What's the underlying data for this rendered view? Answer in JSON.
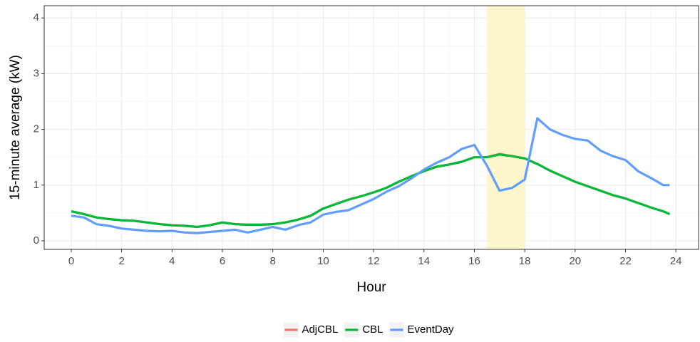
{
  "chart_data": {
    "type": "line",
    "x_label": "Hour",
    "y_label": "15-minute average (kW)",
    "x": [
      0,
      0.5,
      1,
      1.5,
      2,
      2.5,
      3,
      3.5,
      4,
      4.5,
      5,
      5.5,
      6,
      6.5,
      7,
      7.5,
      8,
      8.5,
      9,
      9.5,
      10,
      10.5,
      11,
      11.5,
      12,
      12.5,
      13,
      13.5,
      14,
      14.5,
      15,
      15.5,
      16,
      16.5,
      17,
      17.5,
      18,
      18.5,
      19,
      19.5,
      20,
      20.5,
      21,
      21.5,
      22,
      22.5,
      23,
      23.5,
      23.75
    ],
    "series": [
      {
        "name": "AdjCBL",
        "color": "#f8766d",
        "values": [
          0.53,
          0.48,
          0.42,
          0.39,
          0.37,
          0.36,
          0.33,
          0.3,
          0.28,
          0.27,
          0.25,
          0.28,
          0.33,
          0.3,
          0.29,
          0.29,
          0.3,
          0.33,
          0.38,
          0.45,
          0.58,
          0.66,
          0.74,
          0.8,
          0.87,
          0.95,
          1.06,
          1.16,
          1.25,
          1.33,
          1.37,
          1.42,
          1.5,
          1.5,
          1.56,
          1.52,
          1.48,
          1.38,
          1.26,
          1.16,
          1.06,
          0.98,
          0.9,
          0.82,
          0.76,
          0.68,
          0.6,
          0.53,
          0.48
        ]
      },
      {
        "name": "CBL",
        "color": "#00ba38",
        "values": [
          0.53,
          0.48,
          0.42,
          0.39,
          0.37,
          0.36,
          0.33,
          0.3,
          0.28,
          0.27,
          0.25,
          0.28,
          0.33,
          0.3,
          0.29,
          0.29,
          0.3,
          0.33,
          0.38,
          0.45,
          0.58,
          0.66,
          0.74,
          0.8,
          0.87,
          0.95,
          1.06,
          1.16,
          1.25,
          1.33,
          1.37,
          1.42,
          1.5,
          1.5,
          1.55,
          1.52,
          1.48,
          1.38,
          1.26,
          1.16,
          1.06,
          0.98,
          0.9,
          0.82,
          0.76,
          0.68,
          0.6,
          0.53,
          0.48
        ]
      },
      {
        "name": "EventDay",
        "color": "#619cff",
        "values": [
          0.45,
          0.42,
          0.3,
          0.27,
          0.22,
          0.2,
          0.18,
          0.17,
          0.18,
          0.15,
          0.14,
          0.16,
          0.18,
          0.2,
          0.15,
          0.2,
          0.25,
          0.2,
          0.28,
          0.33,
          0.47,
          0.52,
          0.55,
          0.65,
          0.75,
          0.88,
          0.98,
          1.12,
          1.28,
          1.4,
          1.5,
          1.65,
          1.72,
          1.35,
          0.9,
          0.95,
          1.1,
          2.2,
          2.0,
          1.9,
          1.83,
          1.8,
          1.62,
          1.52,
          1.45,
          1.25,
          1.13,
          1.0,
          1.0
        ]
      }
    ],
    "shade_x": [
      16.5,
      18
    ],
    "shade_color": "#fdf5cc",
    "xlim": [
      -1.075,
      24.9
    ],
    "ylim": [
      -0.153,
      4.22
    ],
    "xticks": [
      0,
      2,
      4,
      6,
      8,
      10,
      12,
      14,
      16,
      18,
      20,
      22,
      24
    ],
    "yticks": [
      0,
      1,
      2,
      3,
      4
    ],
    "grid": true,
    "legend_position": "bottom"
  }
}
